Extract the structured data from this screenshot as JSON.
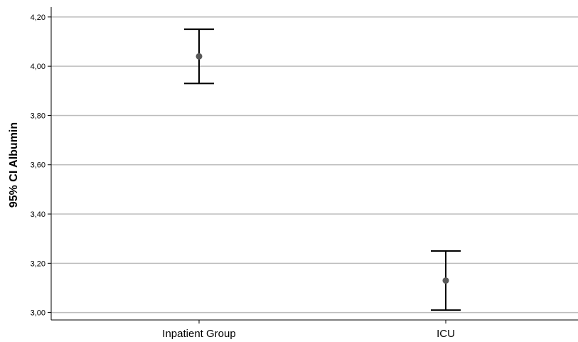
{
  "chart_data": {
    "type": "errorbar",
    "title": "",
    "xlabel": "",
    "ylabel": "95% CI Albumin",
    "categories": [
      "Inpatient Group",
      "ICU"
    ],
    "mean": [
      4.04,
      3.13
    ],
    "ci_lower": [
      3.93,
      3.01
    ],
    "ci_upper": [
      4.15,
      3.25
    ],
    "ylim": [
      2.97,
      4.24
    ],
    "yticks": [
      3.0,
      3.2,
      3.4,
      3.6,
      3.8,
      4.0,
      4.2
    ],
    "ytick_labels": [
      "3,00",
      "3,20",
      "3,40",
      "3,60",
      "3,80",
      "4,00",
      "4,20"
    ],
    "grid": true,
    "legend": "none",
    "colors": {
      "gridline": "#bdbdbd",
      "axis": "#000000",
      "errorbar": "#000000",
      "marker": "#595959"
    }
  }
}
